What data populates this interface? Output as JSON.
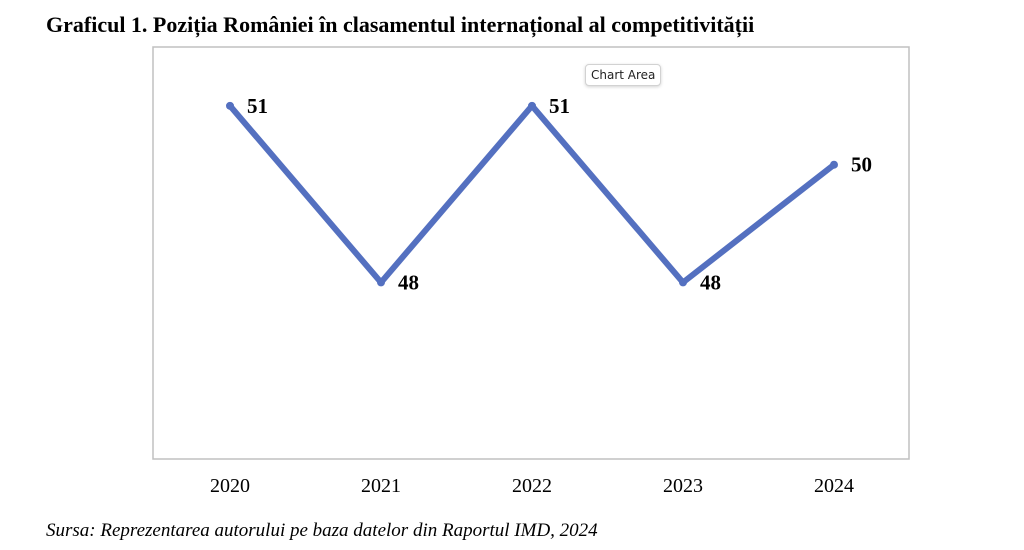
{
  "page": {
    "title": "Graficul 1. Poziția României în clasamentul internațional al competitivității",
    "source": "Sursa: Reprezentarea autorului pe baza datelor din Raportul IMD, 2024",
    "tooltip": "Chart Area"
  },
  "chart_data": {
    "type": "line",
    "title": "Graficul 1. Poziția României în clasamentul internațional al competitivității",
    "categories": [
      "2020",
      "2021",
      "2022",
      "2023",
      "2024"
    ],
    "series": [
      {
        "values": [
          51,
          48,
          51,
          48,
          50
        ]
      }
    ],
    "data_labels": [
      "51",
      "48",
      "51",
      "48",
      "50"
    ],
    "xlabel": "",
    "ylabel": "",
    "ylim": [
      45,
      52
    ],
    "y_axis_visible": false,
    "grid": false,
    "legend": "none",
    "colors": {
      "line": "#5470c0",
      "plot_border": "#c0c0c0"
    }
  }
}
